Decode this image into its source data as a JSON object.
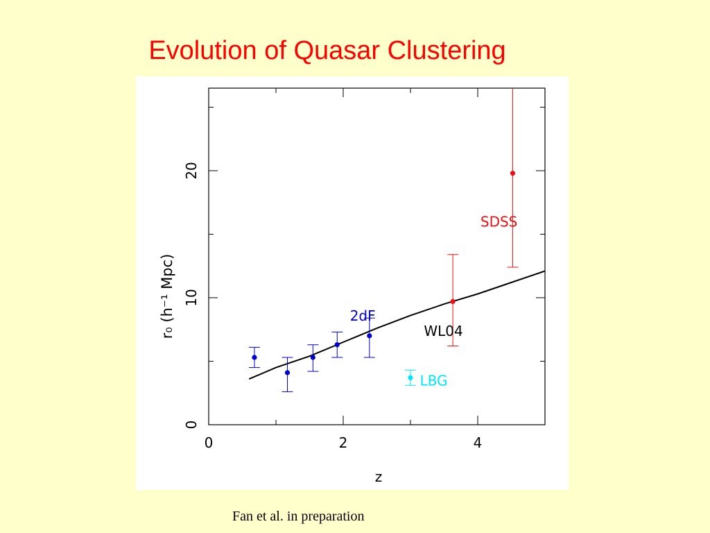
{
  "slide": {
    "title": "Evolution of Quasar Clustering",
    "caption": "Fan et al. in preparation"
  },
  "colors": {
    "background": "#ffffcc",
    "title": "#ff0000",
    "twodf": "#0000cc",
    "sdss": "#ee1111",
    "lbg": "#00e5ff",
    "model": "#000000"
  },
  "chart_data": {
    "type": "scatter",
    "xlabel": "z",
    "ylabel": "r₀ (h⁻¹ Mpc)",
    "xlim": [
      0,
      5
    ],
    "ylim": [
      0,
      26.5
    ],
    "x_ticks": [
      0,
      2,
      4
    ],
    "y_ticks": [
      0,
      10,
      20
    ],
    "grid": false,
    "series": [
      {
        "name": "2dF",
        "points": [
          {
            "x": 0.68,
            "y": 5.3,
            "err_low": 4.5,
            "err_high": 6.1
          },
          {
            "x": 1.17,
            "y": 4.1,
            "err_low": 2.6,
            "err_high": 5.3
          },
          {
            "x": 1.55,
            "y": 5.3,
            "err_low": 4.2,
            "err_high": 6.3
          },
          {
            "x": 1.91,
            "y": 6.3,
            "err_low": 5.3,
            "err_high": 7.3
          },
          {
            "x": 2.39,
            "y": 7.0,
            "err_low": 5.3,
            "err_high": 8.4
          }
        ]
      },
      {
        "name": "SDSS",
        "points": [
          {
            "x": 3.63,
            "y": 9.7,
            "err_low": 6.2,
            "err_high": 13.4
          },
          {
            "x": 4.52,
            "y": 19.8,
            "err_low": 12.4,
            "err_high": 26.5
          }
        ]
      },
      {
        "name": "LBG",
        "points": [
          {
            "x": 3.0,
            "y": 3.7,
            "err_low": 3.1,
            "err_high": 4.3
          }
        ]
      }
    ],
    "model_curve": {
      "name": "WL04",
      "x": [
        0.6,
        1.0,
        1.5,
        2.0,
        2.5,
        3.0,
        3.5,
        4.0,
        4.5,
        5.0
      ],
      "y": [
        3.6,
        4.5,
        5.4,
        6.5,
        7.6,
        8.6,
        9.5,
        10.3,
        11.2,
        12.1
      ]
    },
    "annotations": [
      {
        "text": "2dF",
        "x": 2.1,
        "y": 8.2,
        "color_key": "twodf"
      },
      {
        "text": "SDSS",
        "x": 4.04,
        "y": 15.6,
        "color_key": "sdss"
      },
      {
        "text": "WL04",
        "x": 3.2,
        "y": 7.0,
        "color_key": "model"
      },
      {
        "text": "LBG",
        "x": 3.14,
        "y": 3.1,
        "color_key": "lbg"
      }
    ]
  }
}
